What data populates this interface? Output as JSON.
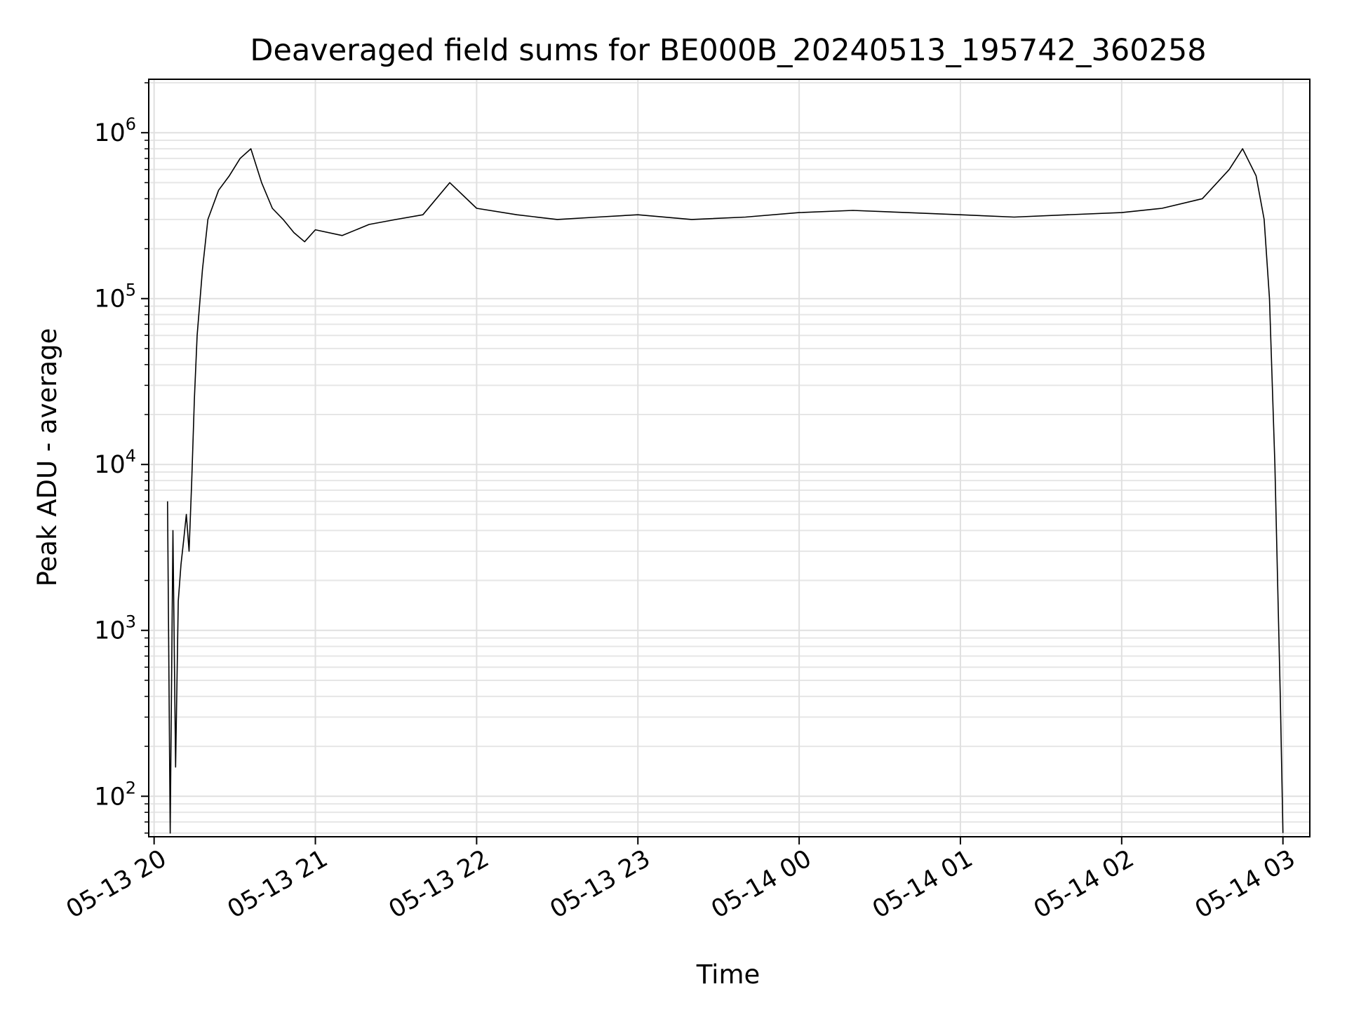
{
  "chart_data": {
    "type": "line",
    "title": "Deaveraged field sums for BE000B_20240513_195742_360258",
    "xlabel": "Time",
    "ylabel": "Peak ADU - average",
    "yscale": "log",
    "ylim": [
      57,
      2100000
    ],
    "xlim": [
      "2024-05-13 19:58",
      "2024-05-14 03:10"
    ],
    "grid": true,
    "x_ticks": [
      "2024-05-13 20:00",
      "2024-05-13 21:00",
      "2024-05-13 22:00",
      "2024-05-13 23:00",
      "2024-05-14 00:00",
      "2024-05-14 01:00",
      "2024-05-14 02:00",
      "2024-05-14 03:00"
    ],
    "x_tick_labels": [
      "05-13 20",
      "05-13 21",
      "05-13 22",
      "05-13 23",
      "05-14 00",
      "05-14 01",
      "05-14 02",
      "05-14 03"
    ],
    "y_ticks": [
      {
        "value": 100,
        "base": "10",
        "exp": "2"
      },
      {
        "value": 1000,
        "base": "10",
        "exp": "3"
      },
      {
        "value": 10000,
        "base": "10",
        "exp": "4"
      },
      {
        "value": 100000,
        "base": "10",
        "exp": "5"
      },
      {
        "value": 1000000,
        "base": "10",
        "exp": "6"
      }
    ],
    "series_color": "#000000",
    "series": [
      {
        "name": "",
        "points": [
          [
            "2024-05-13 20:05",
            6000
          ],
          [
            "2024-05-13 20:06",
            60
          ],
          [
            "2024-05-13 20:07",
            4000
          ],
          [
            "2024-05-13 20:08",
            150
          ],
          [
            "2024-05-13 20:09",
            1500
          ],
          [
            "2024-05-13 20:10",
            2500
          ],
          [
            "2024-05-13 20:11",
            3500
          ],
          [
            "2024-05-13 20:12",
            5000
          ],
          [
            "2024-05-13 20:13",
            3000
          ],
          [
            "2024-05-13 20:14",
            8000
          ],
          [
            "2024-05-13 20:15",
            25000
          ],
          [
            "2024-05-13 20:16",
            60000
          ],
          [
            "2024-05-13 20:18",
            150000
          ],
          [
            "2024-05-13 20:20",
            300000
          ],
          [
            "2024-05-13 20:24",
            450000
          ],
          [
            "2024-05-13 20:28",
            550000
          ],
          [
            "2024-05-13 20:32",
            700000
          ],
          [
            "2024-05-13 20:36",
            800000
          ],
          [
            "2024-05-13 20:40",
            500000
          ],
          [
            "2024-05-13 20:44",
            350000
          ],
          [
            "2024-05-13 20:48",
            300000
          ],
          [
            "2024-05-13 20:52",
            250000
          ],
          [
            "2024-05-13 20:56",
            220000
          ],
          [
            "2024-05-13 21:00",
            260000
          ],
          [
            "2024-05-13 21:10",
            240000
          ],
          [
            "2024-05-13 21:20",
            280000
          ],
          [
            "2024-05-13 21:30",
            300000
          ],
          [
            "2024-05-13 21:40",
            320000
          ],
          [
            "2024-05-13 21:50",
            500000
          ],
          [
            "2024-05-13 22:00",
            350000
          ],
          [
            "2024-05-13 22:15",
            320000
          ],
          [
            "2024-05-13 22:30",
            300000
          ],
          [
            "2024-05-13 22:45",
            310000
          ],
          [
            "2024-05-13 23:00",
            320000
          ],
          [
            "2024-05-13 23:20",
            300000
          ],
          [
            "2024-05-13 23:40",
            310000
          ],
          [
            "2024-05-14 00:00",
            330000
          ],
          [
            "2024-05-14 00:20",
            340000
          ],
          [
            "2024-05-14 00:40",
            330000
          ],
          [
            "2024-05-14 01:00",
            320000
          ],
          [
            "2024-05-14 01:20",
            310000
          ],
          [
            "2024-05-14 01:40",
            320000
          ],
          [
            "2024-05-14 02:00",
            330000
          ],
          [
            "2024-05-14 02:15",
            350000
          ],
          [
            "2024-05-14 02:30",
            400000
          ],
          [
            "2024-05-14 02:40",
            600000
          ],
          [
            "2024-05-14 02:45",
            800000
          ],
          [
            "2024-05-14 02:50",
            550000
          ],
          [
            "2024-05-14 02:53",
            300000
          ],
          [
            "2024-05-14 02:55",
            100000
          ],
          [
            "2024-05-14 02:57",
            10000
          ],
          [
            "2024-05-14 02:59",
            400
          ],
          [
            "2024-05-14 03:00",
            60
          ]
        ]
      }
    ]
  }
}
